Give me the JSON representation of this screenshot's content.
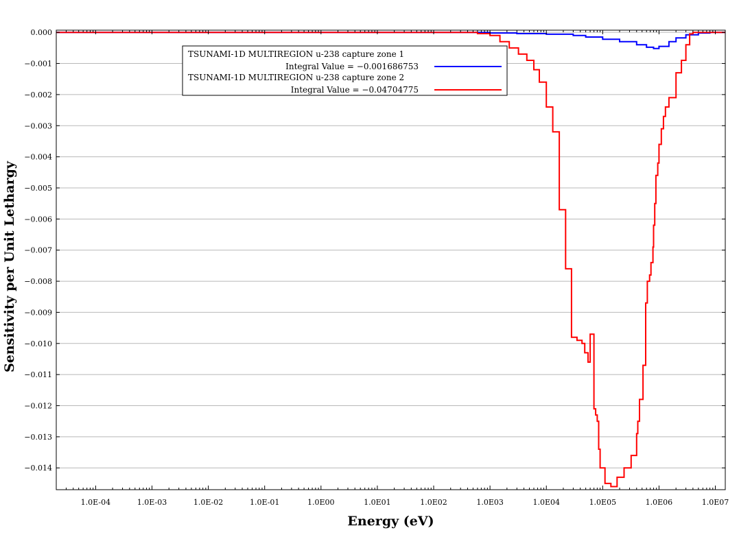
{
  "chart_data": {
    "type": "line",
    "xlabel": "Energy (eV)",
    "ylabel": "Sensitivity per Unit Lethargy",
    "xscale": "log",
    "xlim": [
      2e-05,
      15000000
    ],
    "ylim": [
      -0.0147,
      7e-05
    ],
    "grid": "horizontal",
    "legend_position": "top-center",
    "x_tick_values": [
      0.0001,
      0.001,
      0.01,
      0.1,
      1,
      10,
      100,
      1000,
      10000,
      100000,
      1000000,
      10000000
    ],
    "x_tick_labels": [
      "1.0E-04",
      "1.0E-03",
      "1.0E-02",
      "1.0E-01",
      "1.0E00",
      "1.0E01",
      "1.0E02",
      "1.0E03",
      "1.0E04",
      "1.0E05",
      "1.0E06",
      "1.0E07"
    ],
    "y_tick_values": [
      0,
      -0.001,
      -0.002,
      -0.003,
      -0.004,
      -0.005,
      -0.006,
      -0.007,
      -0.008,
      -0.009,
      -0.01,
      -0.011,
      -0.012,
      -0.013,
      -0.014
    ],
    "y_tick_labels": [
      "0.000",
      "−0.001",
      "−0.002",
      "−0.003",
      "−0.004",
      "−0.005",
      "−0.006",
      "−0.007",
      "−0.008",
      "−0.009",
      "−0.010",
      "−0.011",
      "−0.012",
      "−0.013",
      "−0.014"
    ],
    "series": [
      {
        "name": "TSUNAMI-1D MULTIREGION u-238 capture zone 1",
        "integral_label": "Integral Value = −0.001686753",
        "color": "#0000ff",
        "x": [
          2e-05,
          1000,
          3000,
          10000,
          30000,
          50000,
          100000,
          200000,
          400000,
          600000,
          800000,
          1000000,
          1500000,
          2000000,
          3000000,
          5000000,
          8000000,
          15000000
        ],
        "y": [
          0.0,
          -2e-05,
          -4e-05,
          -6e-05,
          -0.0001,
          -0.00015,
          -0.00022,
          -0.0003,
          -0.0004,
          -0.00048,
          -0.00052,
          -0.00045,
          -0.0003,
          -0.00018,
          -8e-05,
          -2e-05,
          0.0,
          0.0
        ]
      },
      {
        "name": "TSUNAMI-1D MULTIREGION u-238 capture zone 2",
        "integral_label": "Integral Value = −0.04704775",
        "color": "#ff0000",
        "x": [
          2e-05,
          450,
          600,
          1000,
          1500,
          2200,
          3200,
          4500,
          6000,
          7500,
          10000,
          13000,
          17000,
          22000,
          28000,
          35000,
          43000,
          48000,
          55000,
          60000,
          70000,
          75000,
          80000,
          85000,
          90000,
          110000,
          140000,
          180000,
          240000,
          320000,
          400000,
          420000,
          450000,
          520000,
          580000,
          620000,
          680000,
          720000,
          780000,
          800000,
          840000,
          880000,
          950000,
          1000000,
          1100000,
          1200000,
          1300000,
          1500000,
          2000000,
          2500000,
          3000000,
          3500000,
          4000000,
          5000000,
          7000000,
          15000000
        ],
        "y": [
          0.0,
          0.0,
          -4e-05,
          -0.0001,
          -0.0003,
          -0.0005,
          -0.0007,
          -0.0009,
          -0.0012,
          -0.0016,
          -0.0024,
          -0.0032,
          -0.0057,
          -0.0076,
          -0.0098,
          -0.0099,
          -0.01,
          -0.0103,
          -0.0106,
          -0.0097,
          -0.0121,
          -0.0123,
          -0.0125,
          -0.0134,
          -0.014,
          -0.0145,
          -0.0146,
          -0.0143,
          -0.014,
          -0.0136,
          -0.0129,
          -0.0125,
          -0.0118,
          -0.0107,
          -0.0087,
          -0.008,
          -0.0078,
          -0.0074,
          -0.0069,
          -0.0062,
          -0.0055,
          -0.0046,
          -0.0042,
          -0.0036,
          -0.0031,
          -0.0027,
          -0.0024,
          -0.0021,
          -0.0013,
          -0.0009,
          -0.0004,
          -5e-05,
          0.0,
          0.0,
          0.0,
          0.0
        ]
      }
    ]
  }
}
